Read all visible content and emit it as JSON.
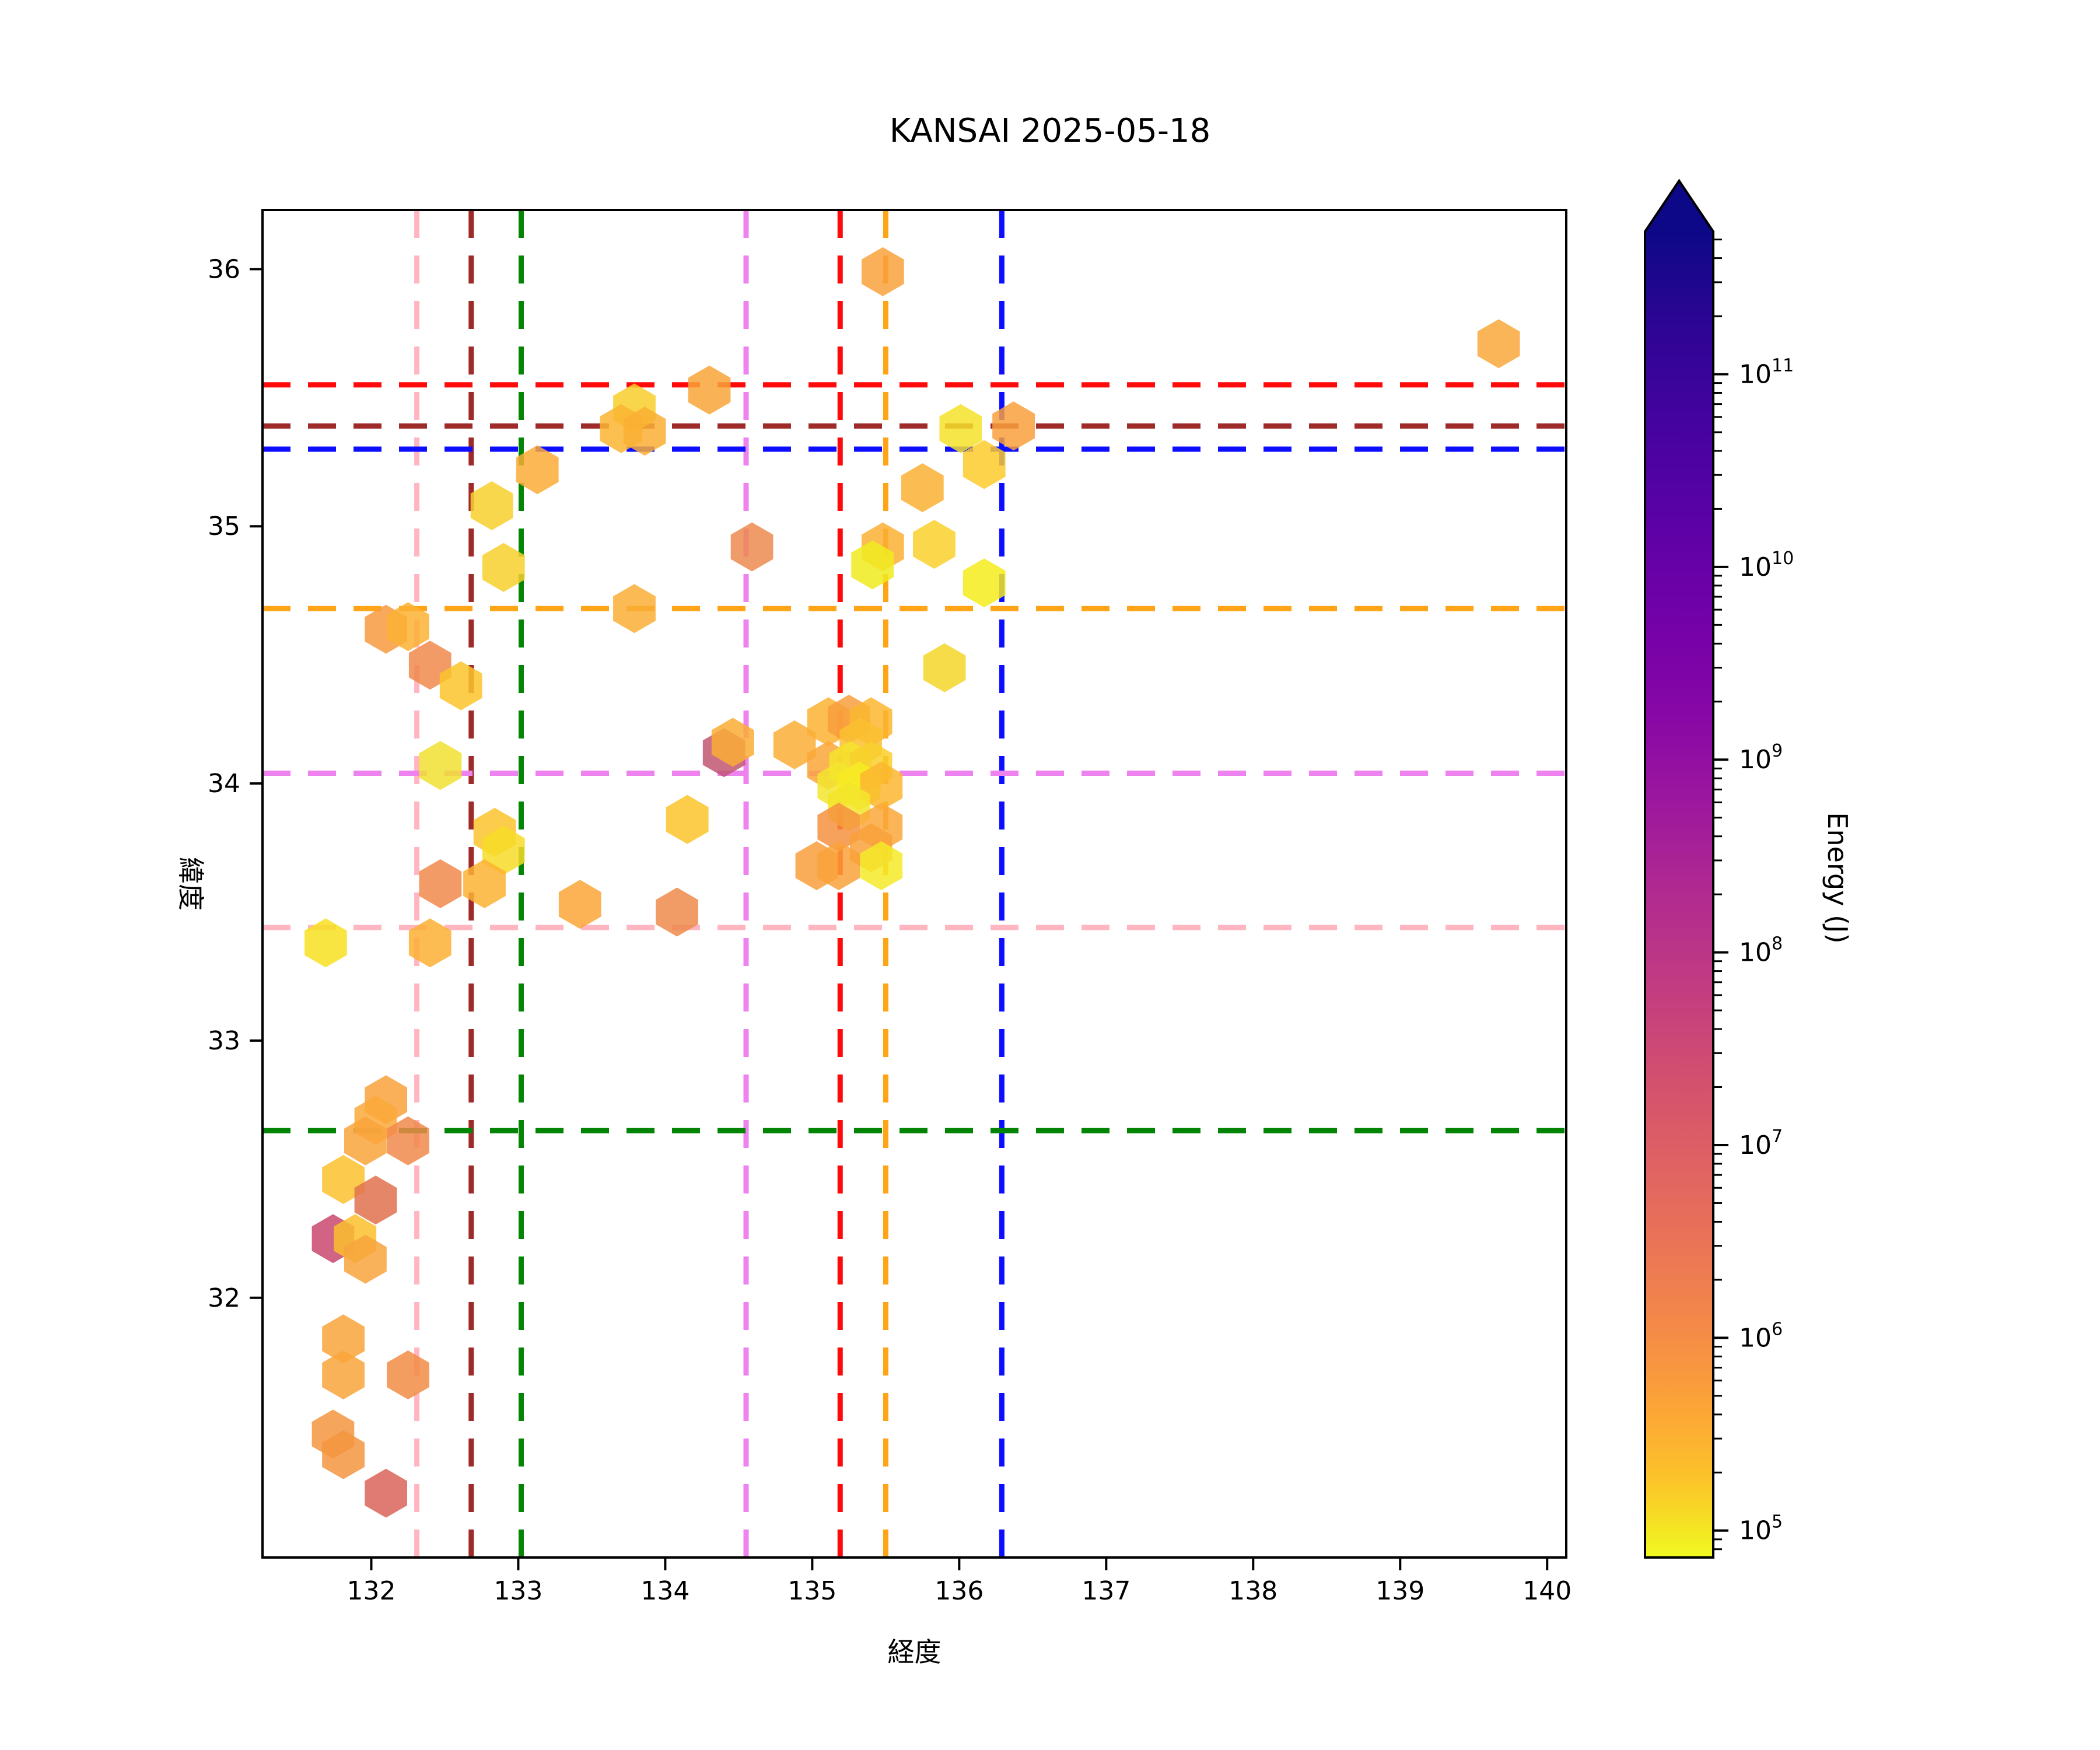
{
  "chart_data": {
    "type": "scatter",
    "title": "KANSAI 2025-05-18",
    "xlabel": "経度",
    "ylabel": "緯度",
    "xlim": [
      131.26,
      140.13
    ],
    "ylim": [
      30.99,
      36.23
    ],
    "xticks": [
      132,
      133,
      134,
      135,
      136,
      137,
      138,
      139,
      140
    ],
    "yticks": [
      32,
      33,
      34,
      35,
      36
    ],
    "x_tick_labels": [
      "132",
      "133",
      "134",
      "135",
      "136",
      "137",
      "138",
      "139",
      "140"
    ],
    "y_tick_labels": [
      "32",
      "33",
      "34",
      "35",
      "36"
    ],
    "grid": false,
    "legend": "none",
    "marker": "hexagon",
    "marker_radius_px": 42,
    "marker_opacity": 0.85,
    "colorbar": {
      "label": "Energy (J)",
      "scale": "log",
      "colormap": "plasma_r",
      "extend": "max",
      "arrow_color": "#0d0887",
      "exp_range": [
        4.86,
        11.74
      ],
      "tick_exponents": [
        5,
        6,
        7,
        8,
        9,
        10,
        11
      ],
      "gradient_top_to_bottom": [
        {
          "o": 0.0,
          "c": "#0d0887"
        },
        {
          "o": 0.07,
          "c": "#2d0594"
        },
        {
          "o": 0.14,
          "c": "#43039e"
        },
        {
          "o": 0.22,
          "c": "#5c01a6"
        },
        {
          "o": 0.29,
          "c": "#7201a8"
        },
        {
          "o": 0.36,
          "c": "#8606a6"
        },
        {
          "o": 0.43,
          "c": "#9c179e"
        },
        {
          "o": 0.5,
          "c": "#b12a90"
        },
        {
          "o": 0.57,
          "c": "#c23c81"
        },
        {
          "o": 0.64,
          "c": "#d3506e"
        },
        {
          "o": 0.71,
          "c": "#e16462"
        },
        {
          "o": 0.78,
          "c": "#ed7953"
        },
        {
          "o": 0.84,
          "c": "#f68f44"
        },
        {
          "o": 0.89,
          "c": "#fca636"
        },
        {
          "o": 0.94,
          "c": "#fcc32a"
        },
        {
          "o": 0.97,
          "c": "#f6dd24"
        },
        {
          "o": 1.0,
          "c": "#f0f921"
        }
      ]
    },
    "reference_lines": {
      "vertical": [
        {
          "name": "pink",
          "x": 132.31,
          "color": "#FFB6C1"
        },
        {
          "name": "darkred",
          "x": 132.68,
          "color": "#9E2A2A"
        },
        {
          "name": "green",
          "x": 133.02,
          "color": "#048404"
        },
        {
          "name": "violet",
          "x": 134.55,
          "color": "#EE82EE"
        },
        {
          "name": "red",
          "x": 135.19,
          "color": "#FF0A0A"
        },
        {
          "name": "orange",
          "x": 135.5,
          "color": "#FFA416"
        },
        {
          "name": "blue",
          "x": 136.29,
          "color": "#0D0DFF"
        }
      ],
      "horizontal": [
        {
          "name": "red",
          "y": 35.55,
          "color": "#FF0A0A"
        },
        {
          "name": "darkred",
          "y": 35.39,
          "color": "#9E2A2A"
        },
        {
          "name": "blue",
          "y": 35.3,
          "color": "#0D0DFF"
        },
        {
          "name": "orange",
          "y": 34.68,
          "color": "#FFA416"
        },
        {
          "name": "violet",
          "y": 34.04,
          "color": "#EE82EE"
        },
        {
          "name": "pink",
          "y": 33.44,
          "color": "#FFB6C1"
        },
        {
          "name": "green",
          "y": 32.65,
          "color": "#048404"
        }
      ]
    },
    "points": [
      {
        "lon": 132.1,
        "lat": 32.77,
        "color": "#F9A13C",
        "energy_j_est": 2000000.0
      },
      {
        "lon": 132.03,
        "lat": 32.69,
        "color": "#FAA93A",
        "energy_j_est": 1500000.0
      },
      {
        "lon": 131.96,
        "lat": 32.61,
        "color": "#F9A53C",
        "energy_j_est": 1500000.0
      },
      {
        "lon": 132.25,
        "lat": 32.61,
        "color": "#F1894B",
        "energy_j_est": 8000000.0
      },
      {
        "lon": 131.81,
        "lat": 32.46,
        "color": "#FBC12D",
        "energy_j_est": 400000.0
      },
      {
        "lon": 132.03,
        "lat": 32.38,
        "color": "#E2714E",
        "energy_j_est": 20000000.0
      },
      {
        "lon": 131.74,
        "lat": 32.23,
        "color": "#C9496F",
        "energy_j_est": 200000000.0
      },
      {
        "lon": 131.89,
        "lat": 32.23,
        "color": "#FBBF2E",
        "energy_j_est": 400000.0
      },
      {
        "lon": 131.96,
        "lat": 32.15,
        "color": "#F8A43C",
        "energy_j_est": 1500000.0
      },
      {
        "lon": 131.81,
        "lat": 31.84,
        "color": "#F9A43B",
        "energy_j_est": 1500000.0
      },
      {
        "lon": 131.81,
        "lat": 31.7,
        "color": "#F9A43B",
        "energy_j_est": 1500000.0
      },
      {
        "lon": 132.25,
        "lat": 31.7,
        "color": "#F28C45",
        "energy_j_est": 7000000.0
      },
      {
        "lon": 131.74,
        "lat": 31.47,
        "color": "#F59540",
        "energy_j_est": 3000000.0
      },
      {
        "lon": 131.81,
        "lat": 31.39,
        "color": "#F59540",
        "energy_j_est": 3000000.0
      },
      {
        "lon": 132.1,
        "lat": 31.24,
        "color": "#D96459",
        "energy_j_est": 40000000.0
      },
      {
        "lon": 132.9,
        "lat": 34.84,
        "color": "#F7D02E",
        "energy_j_est": 200000.0
      },
      {
        "lon": 132.1,
        "lat": 34.6,
        "color": "#F79A40",
        "energy_j_est": 3000000.0
      },
      {
        "lon": 132.25,
        "lat": 34.61,
        "color": "#FBB133",
        "energy_j_est": 800000.0
      },
      {
        "lon": 132.4,
        "lat": 34.46,
        "color": "#F08A4B",
        "energy_j_est": 8000000.0
      },
      {
        "lon": 132.61,
        "lat": 34.38,
        "color": "#FBC42C",
        "energy_j_est": 400000.0
      },
      {
        "lon": 132.47,
        "lat": 34.07,
        "color": "#F0E130",
        "energy_j_est": 120000.0
      },
      {
        "lon": 132.84,
        "lat": 33.81,
        "color": "#FBC32D",
        "energy_j_est": 400000.0
      },
      {
        "lon": 132.9,
        "lat": 33.74,
        "color": "#F7DC28",
        "energy_j_est": 180000.0
      },
      {
        "lon": 132.47,
        "lat": 33.61,
        "color": "#F08A4B",
        "energy_j_est": 8000000.0
      },
      {
        "lon": 132.77,
        "lat": 33.61,
        "color": "#FBB132",
        "energy_j_est": 800000.0
      },
      {
        "lon": 133.42,
        "lat": 33.53,
        "color": "#FAA637",
        "energy_j_est": 1500000.0
      },
      {
        "lon": 132.4,
        "lat": 33.38,
        "color": "#FBB032",
        "energy_j_est": 800000.0
      },
      {
        "lon": 131.69,
        "lat": 33.38,
        "color": "#F7E120",
        "energy_j_est": 130000.0
      },
      {
        "lon": 134.3,
        "lat": 35.53,
        "color": "#F9A43A",
        "energy_j_est": 1500000.0
      },
      {
        "lon": 133.79,
        "lat": 35.46,
        "color": "#F8CE2B",
        "energy_j_est": 300000.0
      },
      {
        "lon": 133.7,
        "lat": 35.38,
        "color": "#FBB533",
        "energy_j_est": 700000.0
      },
      {
        "lon": 133.86,
        "lat": 35.37,
        "color": "#FAAF34",
        "energy_j_est": 800000.0
      },
      {
        "lon": 133.13,
        "lat": 35.22,
        "color": "#FAAB36",
        "energy_j_est": 1000000.0
      },
      {
        "lon": 132.82,
        "lat": 35.08,
        "color": "#F7D02E",
        "energy_j_est": 200000.0
      },
      {
        "lon": 134.59,
        "lat": 34.92,
        "color": "#ED8A50",
        "energy_j_est": 9000000.0
      },
      {
        "lon": 133.79,
        "lat": 34.68,
        "color": "#FAAE35",
        "energy_j_est": 800000.0
      },
      {
        "lon": 134.08,
        "lat": 33.5,
        "color": "#EF8A4C",
        "energy_j_est": 8000000.0
      },
      {
        "lon": 134.4,
        "lat": 34.12,
        "color": "#C25672",
        "energy_j_est": 120000000.0
      },
      {
        "lon": 134.46,
        "lat": 34.16,
        "color": "#FAAD36",
        "energy_j_est": 800000.0
      },
      {
        "lon": 134.15,
        "lat": 33.86,
        "color": "#FBC42C",
        "energy_j_est": 400000.0
      },
      {
        "lon": 135.11,
        "lat": 34.24,
        "color": "#FBB233",
        "energy_j_est": 800000.0
      },
      {
        "lon": 135.25,
        "lat": 34.25,
        "color": "#F89D3D",
        "energy_j_est": 3000000.0
      },
      {
        "lon": 135.4,
        "lat": 34.24,
        "color": "#FBB62F",
        "energy_j_est": 700000.0
      },
      {
        "lon": 134.88,
        "lat": 34.15,
        "color": "#FAAE35",
        "energy_j_est": 800000.0
      },
      {
        "lon": 135.33,
        "lat": 34.16,
        "color": "#FBC030",
        "energy_j_est": 500000.0
      },
      {
        "lon": 135.11,
        "lat": 34.07,
        "color": "#FAA737",
        "energy_j_est": 1500000.0
      },
      {
        "lon": 135.26,
        "lat": 34.07,
        "color": "#F5E42C",
        "energy_j_est": 130000.0
      },
      {
        "lon": 135.4,
        "lat": 34.07,
        "color": "#F8CF2B",
        "energy_j_est": 300000.0
      },
      {
        "lon": 135.18,
        "lat": 33.99,
        "color": "#F2E52E",
        "energy_j_est": 130000.0
      },
      {
        "lon": 135.32,
        "lat": 33.99,
        "color": "#F7EB23",
        "energy_j_est": 100000.0
      },
      {
        "lon": 135.47,
        "lat": 33.99,
        "color": "#FBB62F",
        "energy_j_est": 700000.0
      },
      {
        "lon": 135.25,
        "lat": 33.91,
        "color": "#F3E52B",
        "energy_j_est": 130000.0
      },
      {
        "lon": 135.18,
        "lat": 33.83,
        "color": "#F5923F",
        "energy_j_est": 4000000.0
      },
      {
        "lon": 135.47,
        "lat": 33.83,
        "color": "#FAA83B",
        "energy_j_est": 1500000.0
      },
      {
        "lon": 135.4,
        "lat": 33.75,
        "color": "#F9A13C",
        "energy_j_est": 2000000.0
      },
      {
        "lon": 135.03,
        "lat": 33.68,
        "color": "#F89F3B",
        "energy_j_est": 2500000.0
      },
      {
        "lon": 135.18,
        "lat": 33.68,
        "color": "#F9A23A",
        "energy_j_est": 2000000.0
      },
      {
        "lon": 135.47,
        "lat": 33.68,
        "color": "#F4EA28",
        "energy_j_est": 100000.0
      },
      {
        "lon": 135.48,
        "lat": 35.99,
        "color": "#F9A13C",
        "energy_j_est": 2000000.0
      },
      {
        "lon": 136.01,
        "lat": 35.38,
        "color": "#F4E229",
        "energy_j_est": 130000.0
      },
      {
        "lon": 136.37,
        "lat": 35.39,
        "color": "#F9A03C",
        "energy_j_est": 2000000.0
      },
      {
        "lon": 136.17,
        "lat": 35.24,
        "color": "#FBCB2B",
        "energy_j_est": 350000.0
      },
      {
        "lon": 135.75,
        "lat": 35.15,
        "color": "#FAB233",
        "energy_j_est": 800000.0
      },
      {
        "lon": 135.48,
        "lat": 34.92,
        "color": "#FAB032",
        "energy_j_est": 800000.0
      },
      {
        "lon": 135.41,
        "lat": 34.85,
        "color": "#F0EB1E",
        "energy_j_est": 100000.0
      },
      {
        "lon": 135.83,
        "lat": 34.93,
        "color": "#FAD02D",
        "energy_j_est": 250000.0
      },
      {
        "lon": 136.17,
        "lat": 34.78,
        "color": "#F4EC1C",
        "energy_j_est": 90000.0
      },
      {
        "lon": 135.9,
        "lat": 34.45,
        "color": "#F6D62A",
        "energy_j_est": 200000.0
      },
      {
        "lon": 139.67,
        "lat": 35.71,
        "color": "#F9A83C",
        "energy_j_est": 1500000.0
      }
    ]
  }
}
